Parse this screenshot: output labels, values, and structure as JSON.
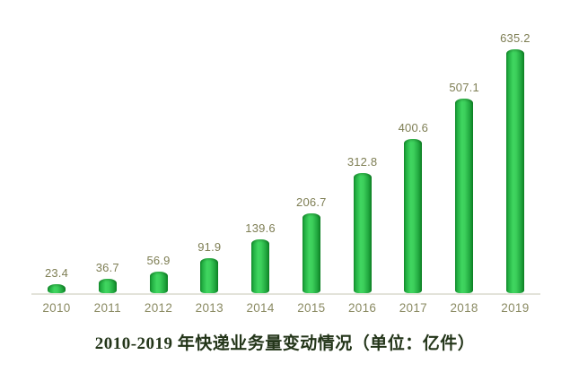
{
  "chart_data": {
    "type": "bar",
    "categories": [
      "2010",
      "2011",
      "2012",
      "2013",
      "2014",
      "2015",
      "2016",
      "2017",
      "2018",
      "2019"
    ],
    "values": [
      23.4,
      36.7,
      56.9,
      91.9,
      139.6,
      206.7,
      312.8,
      400.6,
      507.1,
      635.2
    ],
    "title": "2010-2019 年快递业务量变动情况（单位：亿件）",
    "xlabel": "",
    "ylabel": "",
    "unit": "亿件",
    "ylim": [
      0,
      660
    ],
    "grid": false,
    "legend_position": "none",
    "data_labels": true,
    "colors": {
      "bar_center": "#40d660",
      "bar_edge_left": "#14932f",
      "bar_edge_right": "#0e8526",
      "value_label_text": "#7e7e54",
      "year_label_text": "#8a8a62",
      "axis_line": "#e3e3da",
      "title_text": "#233519",
      "background": "#ffffff"
    }
  }
}
